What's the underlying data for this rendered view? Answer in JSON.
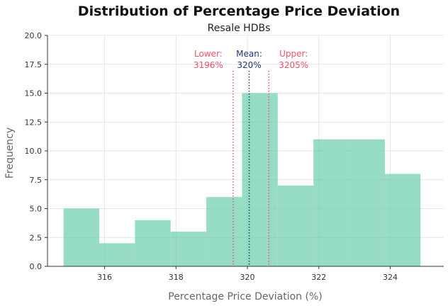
{
  "chart_data": {
    "type": "bar",
    "title": "Distribution of Percentage Price Deviation",
    "subtitle": "Resale HDBs",
    "xlabel": "Percentage Price Deviation (%)",
    "ylabel": "Frequency",
    "xlim": [
      314.4,
      325.5
    ],
    "ylim": [
      0,
      20
    ],
    "xticks": [
      316,
      318,
      320,
      322,
      324
    ],
    "xtick_labels": [
      "316",
      "318",
      "320",
      "322",
      "324"
    ],
    "yticks": [
      0,
      2.5,
      5,
      7.5,
      10,
      12.5,
      15,
      17.5,
      20
    ],
    "ytick_labels": [
      "0.0",
      "2.5",
      "5.0",
      "7.5",
      "10.0",
      "12.5",
      "15.0",
      "17.5",
      "20.0"
    ],
    "grid": true,
    "bins": [
      {
        "x0": 314.85,
        "x1": 315.85,
        "count": 5
      },
      {
        "x0": 315.85,
        "x1": 316.85,
        "count": 2
      },
      {
        "x0": 316.85,
        "x1": 317.85,
        "count": 4
      },
      {
        "x0": 317.85,
        "x1": 318.85,
        "count": 3
      },
      {
        "x0": 318.85,
        "x1": 319.85,
        "count": 6
      },
      {
        "x0": 319.85,
        "x1": 320.85,
        "count": 15
      },
      {
        "x0": 320.85,
        "x1": 321.85,
        "count": 7
      },
      {
        "x0": 321.85,
        "x1": 322.85,
        "count": 11
      },
      {
        "x0": 322.85,
        "x1": 323.85,
        "count": 11
      },
      {
        "x0": 323.85,
        "x1": 324.85,
        "count": 8
      }
    ],
    "reference_lines": [
      {
        "name": "lower",
        "x": 319.6,
        "label_top": "Lower:",
        "label_bottom": "3196%",
        "color": "#f0506e"
      },
      {
        "name": "mean",
        "x": 320.05,
        "label_top": "Mean:",
        "label_bottom": "320%",
        "color": "#1f3a6e"
      },
      {
        "name": "upper",
        "x": 320.6,
        "label_top": "Upper:",
        "label_bottom": "3205%",
        "color": "#f0506e"
      }
    ],
    "bar_color": "#66cdaa"
  }
}
